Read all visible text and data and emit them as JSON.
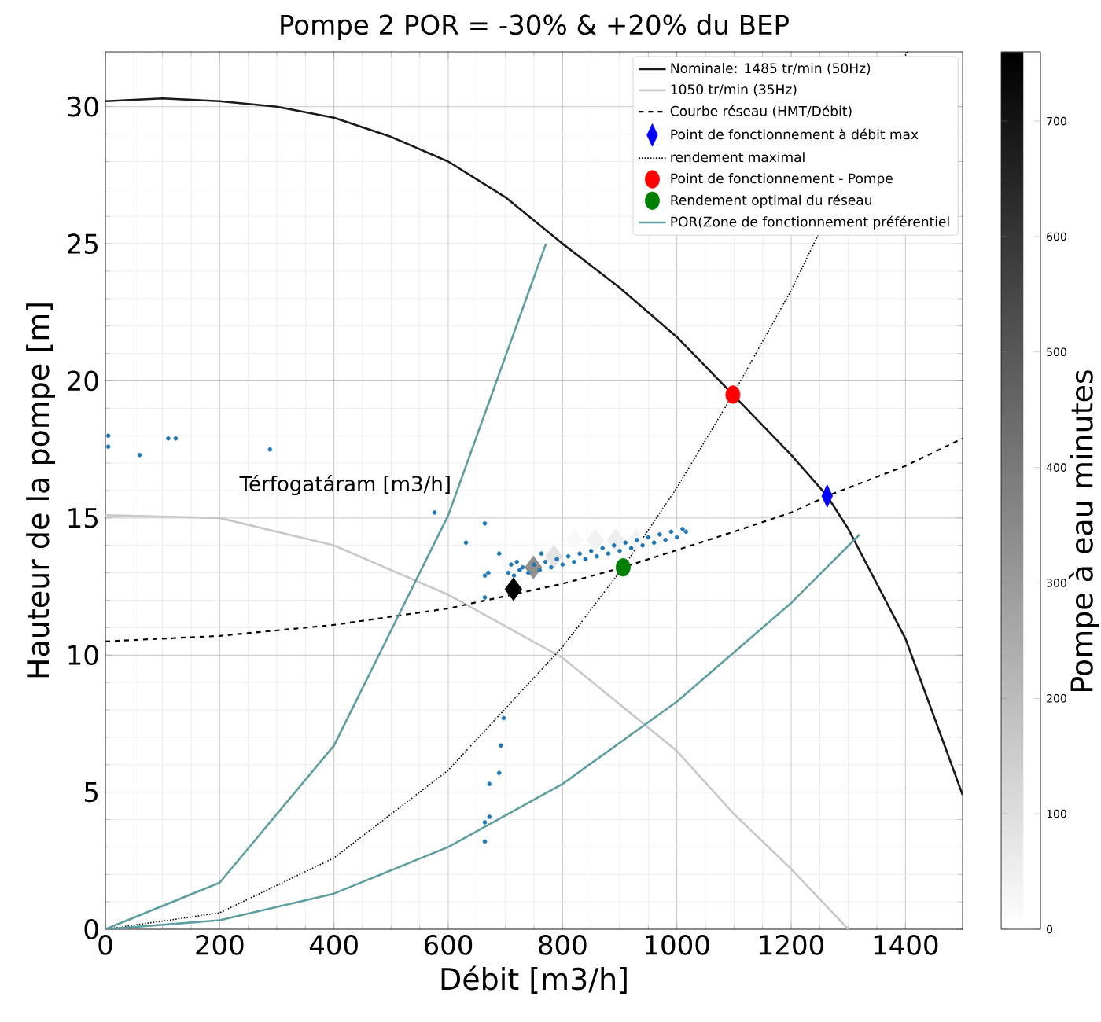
{
  "chart_data": {
    "type": "line",
    "title": "Pompe 2 POR = -30% & +20% du BEP",
    "xlabel": "Débit [m3/h]",
    "ylabel": "Hauteur de la pompe [m]",
    "clabel": "Pompe à eau minutes",
    "xlim": [
      0,
      1500
    ],
    "ylim": [
      0,
      32
    ],
    "xticks": [
      0,
      200,
      400,
      600,
      800,
      1000,
      1200,
      1400
    ],
    "yticks": [
      0,
      5,
      10,
      15,
      20,
      25,
      30
    ],
    "clim": [
      0,
      760
    ],
    "cticks": [
      0,
      100,
      200,
      300,
      400,
      500,
      600,
      700
    ],
    "grid": true,
    "legend": "top right",
    "annotations": [
      "Térfogatáram [m3/h]"
    ],
    "series": [
      {
        "type": "scatter",
        "marker": "diamond",
        "x": [
          714,
          749,
          785,
          821,
          857,
          893,
          929,
          965,
          1001
        ],
        "values": [
          12.4,
          13.2,
          13.6,
          14.2,
          14.2,
          14.2,
          14.2,
          14.2,
          14.2
        ],
        "cvalues": [
          760,
          330,
          80,
          20,
          40,
          50,
          30,
          20,
          15
        ],
        "colors": [
          "#000000",
          "#909090",
          "#e4e4e4",
          "#f8f8f8",
          "#f2f2f2",
          "#eeeeee",
          "#f5f5f5",
          "#f8f8f8",
          "#fafafa"
        ]
      },
      {
        "type": "scatter",
        "marker": "circle",
        "color": "#1f77b4",
        "x": [
          5,
          5,
          60,
          110,
          123,
          288,
          576,
          664,
          631,
          689,
          664,
          670,
          664,
          763,
          697,
          692,
          689,
          672,
          672,
          664,
          664,
          705,
          710,
          715,
          720,
          725,
          730,
          740,
          750,
          760,
          770,
          780,
          790,
          800,
          810,
          820,
          830,
          840,
          850,
          860,
          870,
          880,
          890,
          900,
          910,
          920,
          930,
          940,
          950,
          960,
          970,
          980,
          990,
          1000,
          1010,
          1016
        ],
        "values": [
          18.0,
          17.6,
          17.3,
          17.9,
          17.9,
          17.5,
          15.2,
          14.8,
          14.1,
          13.7,
          12.9,
          13.0,
          12.1,
          13.7,
          7.7,
          6.7,
          5.7,
          5.3,
          4.1,
          3.9,
          3.2,
          13.0,
          13.3,
          12.9,
          13.4,
          13.1,
          13.2,
          13.0,
          13.3,
          13.1,
          13.4,
          13.2,
          13.5,
          13.3,
          13.6,
          13.4,
          13.7,
          13.5,
          13.8,
          13.6,
          13.9,
          13.7,
          14.0,
          13.8,
          14.1,
          13.9,
          14.2,
          14.0,
          14.3,
          14.1,
          14.4,
          14.2,
          14.5,
          14.3,
          14.6,
          14.5
        ]
      },
      {
        "name": "Nominale: 1485 tr/min (50Hz)",
        "color": "#1a1a1a",
        "line_style": "solid",
        "x": [
          0,
          100,
          200,
          300,
          400,
          500,
          600,
          700,
          800,
          900,
          1000,
          1098,
          1200,
          1263,
          1300,
          1400,
          1500
        ],
        "values": [
          30.2,
          30.3,
          30.2,
          30.0,
          29.6,
          28.9,
          28.0,
          26.7,
          25.0,
          23.4,
          21.6,
          19.5,
          17.3,
          15.8,
          14.6,
          10.6,
          4.9
        ]
      },
      {
        "name": "1050 tr/min (35Hz)",
        "color": "#c8c8c8",
        "line_style": "solid",
        "x": [
          0,
          200,
          400,
          600,
          800,
          1000,
          1100,
          1200,
          1300
        ],
        "values": [
          15.1,
          15.0,
          14.0,
          12.2,
          9.9,
          6.5,
          4.2,
          2.2,
          0
        ]
      },
      {
        "name": "Courbe réseau (HMT/Débit)",
        "color": "#000000",
        "line_style": "dashed",
        "x": [
          0,
          200,
          400,
          600,
          800,
          906,
          1100,
          1200,
          1263,
          1400,
          1500
        ],
        "values": [
          10.5,
          10.7,
          11.1,
          11.7,
          12.6,
          13.2,
          14.5,
          15.2,
          15.8,
          16.9,
          17.9
        ]
      },
      {
        "type": "scatter",
        "name": "Point de fonctionnement à débit max",
        "marker": "diamond",
        "color": "#0000ff",
        "x": [
          1263
        ],
        "values": [
          15.8
        ]
      },
      {
        "name": "rendement maximal",
        "color": "#000000",
        "line_style": "dotted",
        "x": [
          0,
          200,
          400,
          600,
          800,
          906,
          1000,
          1098,
          1200,
          1300,
          1403
        ],
        "values": [
          0,
          0.6,
          2.6,
          5.8,
          10.3,
          13.2,
          16.1,
          19.5,
          23.3,
          null,
          32
        ]
      },
      {
        "type": "scatter",
        "name": "Point de fonctionnement - Pompe",
        "marker": "circle",
        "color": "#ff0000",
        "x": [
          1098
        ],
        "values": [
          19.5
        ]
      },
      {
        "type": "scatter",
        "name": "Rendement optimal du réseau",
        "marker": "circle",
        "color": "#008000",
        "x": [
          906
        ],
        "values": [
          13.2
        ]
      },
      {
        "name": "POR(Zone de fonctionnement préférentiel",
        "color": "#5f9ea0",
        "line_style": "solid",
        "x": [
          0,
          200,
          400,
          600,
          771
        ],
        "values": [
          0,
          1.7,
          6.7,
          15.1,
          25.0
        ]
      },
      {
        "color": "#5f9ea0",
        "line_style": "solid",
        "x": [
          0,
          200,
          400,
          600,
          800,
          1000,
          1200,
          1320
        ],
        "values": [
          0,
          0.33,
          1.3,
          3.0,
          5.3,
          8.3,
          11.9,
          14.4
        ]
      }
    ]
  }
}
